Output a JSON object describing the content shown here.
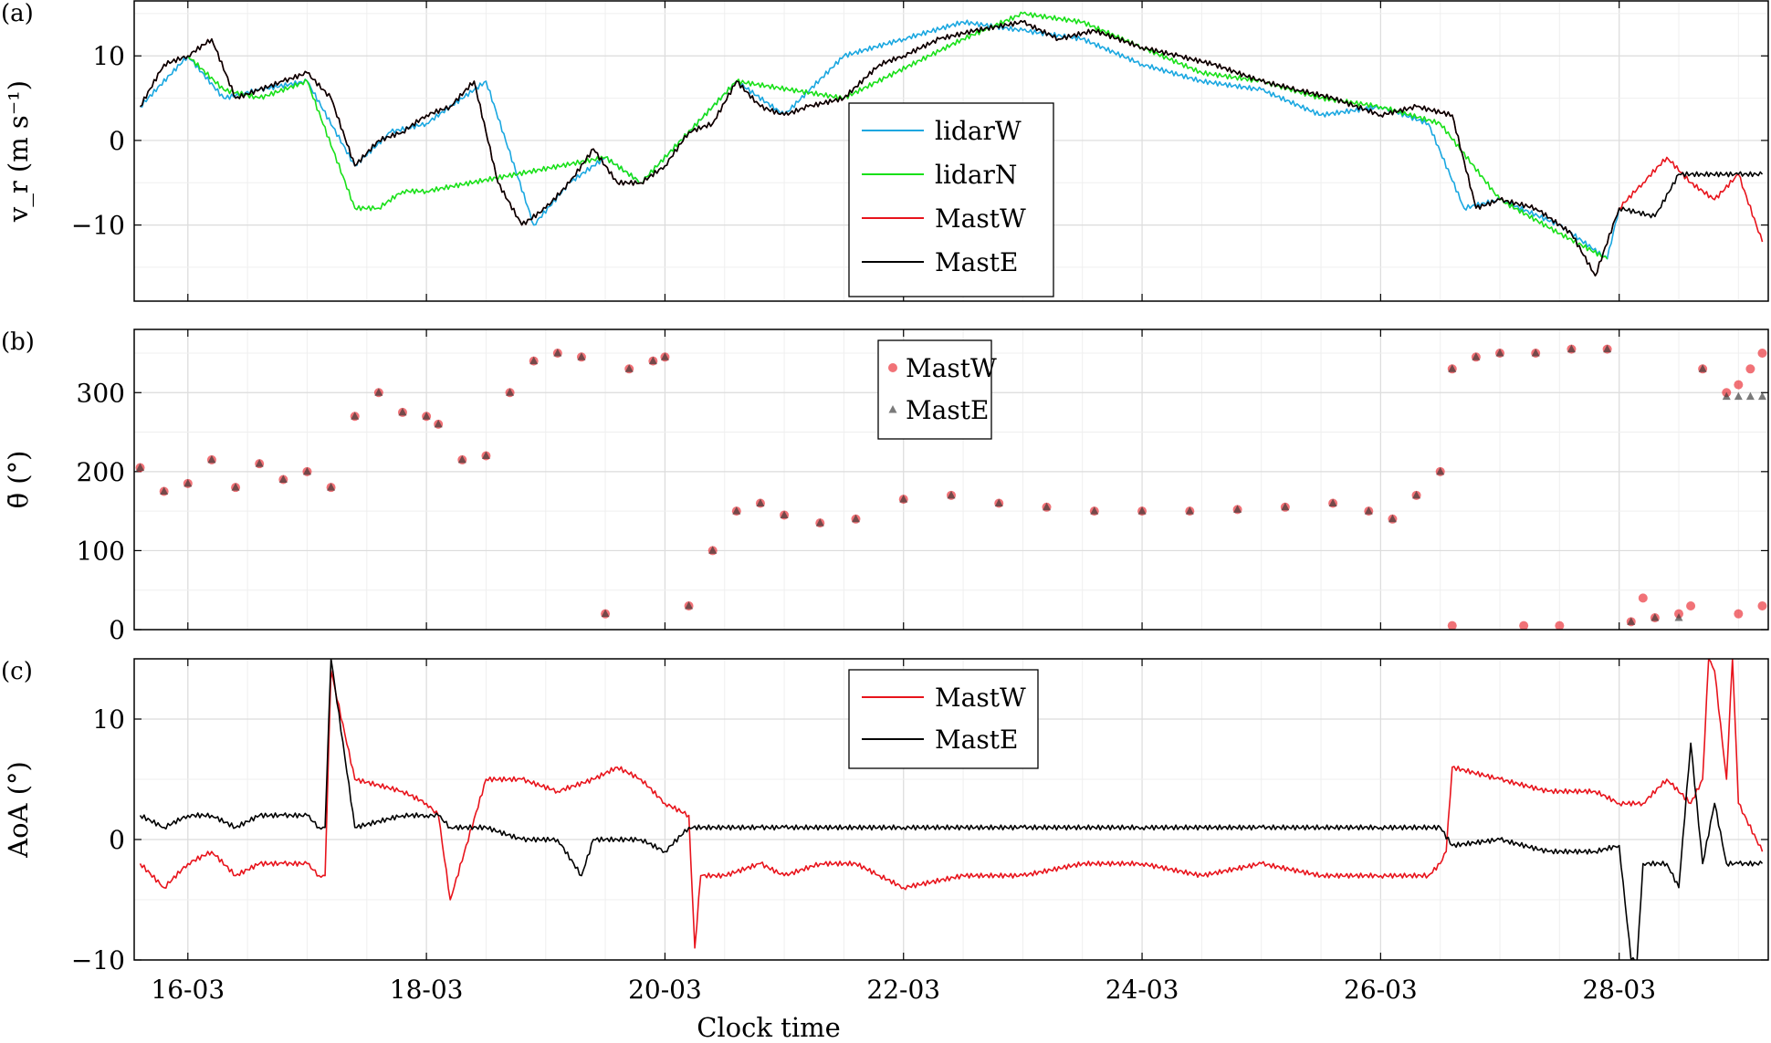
{
  "figure": {
    "xlabel": "Clock time",
    "x_ticks": [
      "16-03",
      "18-03",
      "20-03",
      "22-03",
      "24-03",
      "26-03",
      "28-03"
    ]
  },
  "colors": {
    "lidarW": "#1aa7e0",
    "lidarN": "#19e019",
    "MastW": "#e8141c",
    "MastE": "#000000",
    "grid": "#dcdcdc"
  },
  "chart_data": [
    {
      "panel": "(a)",
      "type": "line",
      "ylabel": "v_r (m s⁻¹)",
      "ylim": [
        -19,
        16.5
      ],
      "yticks": [
        -10,
        0,
        10
      ],
      "xlim": [
        15.55,
        29.25
      ],
      "grid": true,
      "legend": "center",
      "series": [
        {
          "name": "lidarW",
          "x": [
            15.6,
            16.0,
            16.3,
            16.6,
            17.0,
            17.4,
            17.7,
            18.0,
            18.5,
            18.9,
            19.2,
            19.5,
            19.8,
            20.2,
            20.6,
            21.0,
            21.5,
            22.0,
            22.5,
            23.0,
            23.5,
            24.0,
            24.5,
            25.0,
            25.5,
            26.0,
            26.4,
            26.7,
            27.0,
            27.5,
            27.9,
            28.0
          ],
          "y": [
            4,
            10,
            5,
            6,
            7,
            -3,
            1,
            2,
            7,
            -10,
            -5,
            -2,
            -5,
            1,
            7,
            3,
            10,
            12,
            14,
            13,
            12,
            9,
            7,
            6,
            3,
            4,
            2,
            -8,
            -7,
            -10,
            -14,
            -8
          ]
        },
        {
          "name": "lidarN",
          "x": [
            16.0,
            16.3,
            16.6,
            17.0,
            17.4,
            17.6,
            17.8,
            18.0,
            19.5,
            19.8,
            20.6,
            21.5,
            22.5,
            23.0,
            23.5,
            24.0,
            24.5,
            25.0,
            25.5,
            26.0,
            26.5,
            27.0,
            27.5,
            27.9
          ],
          "y": [
            10,
            6,
            5,
            7,
            -8,
            -8,
            -6,
            -6,
            -2,
            -5,
            7,
            5,
            12,
            15,
            14,
            11,
            8,
            7,
            5,
            4,
            2,
            -7,
            -11,
            -14
          ]
        },
        {
          "name": "MastW",
          "x": [
            15.6,
            15.8,
            16.0,
            16.2,
            16.4,
            16.6,
            16.8,
            17.0,
            17.2,
            17.4,
            17.6,
            17.8,
            18.0,
            18.2,
            18.4,
            18.6,
            18.8,
            19.0,
            19.2,
            19.4,
            19.6,
            19.8,
            20.0,
            20.2,
            20.4,
            20.6,
            20.8,
            21.0,
            21.2,
            21.5,
            21.8,
            22.0,
            22.3,
            22.6,
            23.0,
            23.3,
            23.6,
            24.0,
            24.3,
            24.6,
            25.0,
            25.3,
            25.6,
            26.0,
            26.3,
            26.6,
            26.8,
            27.0,
            27.3,
            27.6,
            27.8,
            28.0,
            28.2,
            28.4,
            28.6,
            28.8,
            29.0,
            29.2
          ],
          "y": [
            4,
            9,
            10,
            12,
            5,
            6,
            7,
            8,
            5,
            -3,
            0,
            1,
            3,
            4,
            7,
            -5,
            -10,
            -8,
            -5,
            -1,
            -5,
            -5,
            -3,
            1,
            2,
            7,
            4,
            3,
            4,
            5,
            9,
            10,
            12,
            13,
            14,
            12,
            13,
            11,
            10,
            9,
            7,
            6,
            5,
            3,
            4,
            3,
            -8,
            -7,
            -8,
            -11,
            -16,
            -8,
            -5,
            -2,
            -5,
            -7,
            -4,
            -12
          ]
        },
        {
          "name": "MastE",
          "x": [
            15.6,
            15.8,
            16.0,
            16.2,
            16.4,
            16.6,
            16.8,
            17.0,
            17.2,
            17.4,
            17.6,
            17.8,
            18.0,
            18.2,
            18.4,
            18.6,
            18.8,
            19.0,
            19.2,
            19.4,
            19.6,
            19.8,
            20.0,
            20.2,
            20.4,
            20.6,
            20.8,
            21.0,
            21.2,
            21.5,
            21.8,
            22.0,
            22.3,
            22.6,
            23.0,
            23.3,
            23.6,
            24.0,
            24.3,
            24.6,
            25.0,
            25.3,
            25.6,
            26.0,
            26.3,
            26.6,
            26.8,
            27.0,
            27.3,
            27.6,
            27.8,
            28.0,
            28.3,
            28.5,
            28.7,
            29.0,
            29.2
          ],
          "y": [
            4,
            9,
            10,
            12,
            5,
            6,
            7,
            8,
            5,
            -3,
            0,
            1,
            3,
            4,
            7,
            -5,
            -10,
            -8,
            -5,
            -1,
            -5,
            -5,
            -3,
            1,
            2,
            7,
            4,
            3,
            4,
            5,
            9,
            10,
            12,
            13,
            14,
            12,
            13,
            11,
            10,
            9,
            7,
            6,
            5,
            3,
            4,
            3,
            -8,
            -7,
            -8,
            -11,
            -16,
            -8,
            -9,
            -4,
            -4,
            -4,
            -4
          ]
        }
      ]
    },
    {
      "panel": "(b)",
      "type": "scatter",
      "ylabel": "θ̄ (°)",
      "ylim": [
        0,
        380
      ],
      "yticks": [
        0,
        100,
        200,
        300
      ],
      "xlim": [
        15.55,
        29.25
      ],
      "grid": true,
      "legend": "top-center",
      "series": [
        {
          "name": "MastW",
          "marker": "circle",
          "x": [
            15.6,
            15.8,
            16.0,
            16.2,
            16.4,
            16.6,
            16.8,
            17.0,
            17.2,
            17.4,
            17.6,
            17.8,
            18.0,
            18.1,
            18.3,
            18.5,
            18.7,
            18.9,
            19.1,
            19.3,
            19.5,
            19.7,
            19.9,
            20.0,
            20.2,
            20.4,
            20.6,
            20.8,
            21.0,
            21.3,
            21.6,
            22.0,
            22.4,
            22.8,
            23.2,
            23.6,
            24.0,
            24.4,
            24.8,
            25.2,
            25.6,
            25.9,
            26.1,
            26.3,
            26.5,
            26.6,
            26.8,
            27.0,
            27.3,
            27.6,
            27.9,
            28.1,
            28.3,
            28.5,
            28.7,
            28.9,
            29.0,
            29.1,
            29.2,
            28.2,
            28.6,
            29.0,
            29.2,
            26.6,
            27.2,
            27.5
          ],
          "y": [
            205,
            175,
            185,
            215,
            180,
            210,
            190,
            200,
            180,
            270,
            300,
            275,
            270,
            260,
            215,
            220,
            300,
            340,
            350,
            345,
            20,
            330,
            340,
            345,
            30,
            100,
            150,
            160,
            145,
            135,
            140,
            165,
            170,
            160,
            155,
            150,
            150,
            150,
            152,
            155,
            160,
            150,
            140,
            170,
            200,
            330,
            345,
            350,
            350,
            355,
            355,
            10,
            15,
            20,
            330,
            300,
            310,
            330,
            350,
            40,
            30,
            20,
            30,
            5,
            5,
            5
          ]
        },
        {
          "name": "MastE",
          "marker": "triangle",
          "x": [
            15.6,
            15.8,
            16.0,
            16.2,
            16.4,
            16.6,
            16.8,
            17.0,
            17.2,
            17.4,
            17.6,
            17.8,
            18.0,
            18.1,
            18.3,
            18.5,
            18.7,
            18.9,
            19.1,
            19.3,
            19.5,
            19.7,
            19.9,
            20.0,
            20.2,
            20.4,
            20.6,
            20.8,
            21.0,
            21.3,
            21.6,
            22.0,
            22.4,
            22.8,
            23.2,
            23.6,
            24.0,
            24.4,
            24.8,
            25.2,
            25.6,
            25.9,
            26.1,
            26.3,
            26.5,
            26.6,
            26.8,
            27.0,
            27.3,
            27.6,
            27.9,
            28.1,
            28.3,
            28.5,
            28.7,
            28.9,
            29.0,
            29.1,
            29.2
          ],
          "y": [
            205,
            175,
            185,
            215,
            180,
            210,
            190,
            200,
            180,
            270,
            300,
            275,
            270,
            260,
            215,
            220,
            300,
            340,
            350,
            345,
            20,
            330,
            340,
            345,
            30,
            100,
            150,
            160,
            145,
            135,
            140,
            165,
            170,
            160,
            155,
            150,
            150,
            150,
            152,
            155,
            160,
            150,
            140,
            170,
            200,
            330,
            345,
            350,
            350,
            355,
            355,
            10,
            15,
            15,
            330,
            295,
            295,
            295,
            295
          ]
        }
      ]
    },
    {
      "panel": "(c)",
      "type": "line",
      "ylabel": "AoA (°)",
      "ylim": [
        -10,
        15
      ],
      "yticks": [
        -10,
        0,
        10
      ],
      "xlim": [
        15.55,
        29.25
      ],
      "grid": true,
      "legend": "top-center",
      "series": [
        {
          "name": "MastW",
          "x": [
            15.6,
            15.8,
            16.0,
            16.2,
            16.4,
            16.6,
            16.8,
            17.0,
            17.1,
            17.15,
            17.2,
            17.4,
            17.8,
            18.0,
            18.1,
            18.2,
            18.5,
            18.8,
            19.1,
            19.4,
            19.6,
            19.8,
            20.0,
            20.2,
            20.25,
            20.3,
            20.5,
            20.8,
            21.0,
            21.3,
            21.6,
            21.8,
            22.0,
            22.5,
            23.0,
            23.5,
            24.0,
            24.5,
            25.0,
            25.5,
            26.0,
            26.4,
            26.5,
            26.55,
            26.6,
            27.0,
            27.4,
            27.8,
            28.0,
            28.2,
            28.4,
            28.6,
            28.7,
            28.75,
            28.8,
            28.9,
            28.95,
            29.0,
            29.2
          ],
          "y": [
            -2,
            -4,
            -2,
            -1,
            -3,
            -2,
            -2,
            -2,
            -3,
            -3,
            14,
            5,
            4,
            3,
            2,
            -5,
            5,
            5,
            4,
            5,
            6,
            5,
            3,
            2,
            -9,
            -3,
            -3,
            -2,
            -3,
            -2,
            -2,
            -3,
            -4,
            -3,
            -3,
            -2,
            -2,
            -3,
            -2,
            -3,
            -3,
            -3,
            -2,
            -1,
            6,
            5,
            4,
            4,
            3,
            3,
            5,
            3,
            5,
            15,
            14,
            5,
            15,
            3,
            -1
          ]
        },
        {
          "name": "MastE",
          "x": [
            15.6,
            15.8,
            16.0,
            16.2,
            16.4,
            16.6,
            16.8,
            17.0,
            17.1,
            17.15,
            17.2,
            17.4,
            17.8,
            18.0,
            18.1,
            18.2,
            18.5,
            18.8,
            19.1,
            19.3,
            19.4,
            19.6,
            19.8,
            20.0,
            20.2,
            20.5,
            20.8,
            21.0,
            21.5,
            22.0,
            22.5,
            23.0,
            23.5,
            24.0,
            24.5,
            25.0,
            25.5,
            26.0,
            26.5,
            26.6,
            27.0,
            27.4,
            27.8,
            28.0,
            28.1,
            28.15,
            28.2,
            28.4,
            28.5,
            28.6,
            28.7,
            28.8,
            28.9,
            29.0,
            29.2
          ],
          "y": [
            2,
            1,
            2,
            2,
            1,
            2,
            2,
            2,
            1,
            1,
            15,
            1,
            2,
            2,
            2,
            1,
            1,
            0,
            0,
            -3,
            0,
            0,
            0,
            -1,
            1,
            1,
            1,
            1,
            1,
            1,
            1,
            1,
            1,
            1,
            1,
            1,
            1,
            1,
            1,
            -0.5,
            0,
            -1,
            -1,
            -0.5,
            -10,
            -10,
            -2,
            -2,
            -4,
            8,
            -2,
            3,
            -2,
            -2,
            -2
          ]
        }
      ]
    }
  ]
}
